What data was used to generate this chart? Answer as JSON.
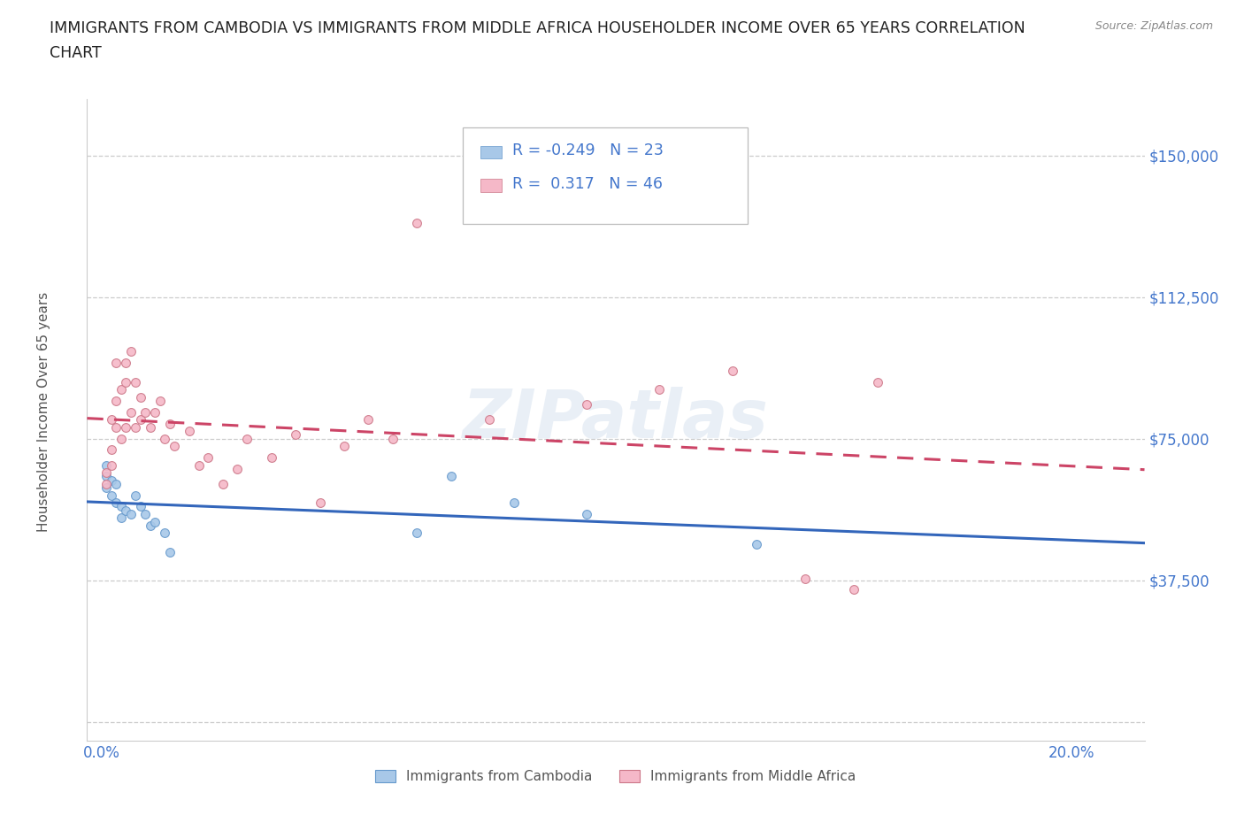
{
  "title_line1": "IMMIGRANTS FROM CAMBODIA VS IMMIGRANTS FROM MIDDLE AFRICA HOUSEHOLDER INCOME OVER 65 YEARS CORRELATION",
  "title_line2": "CHART",
  "source_text": "Source: ZipAtlas.com",
  "ylabel": "Householder Income Over 65 years",
  "xlim": [
    -0.003,
    0.215
  ],
  "ylim": [
    -5000,
    165000
  ],
  "yticks": [
    0,
    37500,
    75000,
    112500,
    150000
  ],
  "ytick_labels": [
    "",
    "$37,500",
    "$75,000",
    "$112,500",
    "$150,000"
  ],
  "xtick_positions": [
    0.0,
    0.05,
    0.1,
    0.15,
    0.2
  ],
  "xtick_labels": [
    "0.0%",
    "",
    "",
    "",
    "20.0%"
  ],
  "watermark": "ZIPatlas",
  "cambodia_color": "#a8c8e8",
  "cambodia_edge": "#6699cc",
  "middle_africa_color": "#f5b8c8",
  "middle_africa_edge": "#cc7788",
  "trend_cambodia_color": "#3366bb",
  "trend_middle_africa_color": "#cc4466",
  "legend_label_cambodia": "Immigrants from Cambodia",
  "legend_label_middle_africa": "Immigrants from Middle Africa",
  "title_color": "#222222",
  "title_fontsize": 12.5,
  "source_fontsize": 9,
  "axis_label_color": "#555555",
  "tick_color": "#4477cc",
  "grid_color": "#cccccc",
  "scatter_size": 50,
  "cambodia_x": [
    0.001,
    0.001,
    0.001,
    0.002,
    0.002,
    0.003,
    0.003,
    0.004,
    0.004,
    0.005,
    0.006,
    0.007,
    0.008,
    0.009,
    0.01,
    0.011,
    0.013,
    0.014,
    0.065,
    0.072,
    0.085,
    0.1,
    0.135
  ],
  "cambodia_y": [
    68000,
    65000,
    62000,
    64000,
    60000,
    63000,
    58000,
    57000,
    54000,
    56000,
    55000,
    60000,
    57000,
    55000,
    52000,
    53000,
    50000,
    45000,
    50000,
    65000,
    58000,
    55000,
    47000
  ],
  "middle_africa_x": [
    0.001,
    0.001,
    0.002,
    0.002,
    0.002,
    0.003,
    0.003,
    0.003,
    0.004,
    0.004,
    0.005,
    0.005,
    0.005,
    0.006,
    0.006,
    0.007,
    0.007,
    0.008,
    0.008,
    0.009,
    0.01,
    0.011,
    0.012,
    0.013,
    0.014,
    0.015,
    0.018,
    0.02,
    0.022,
    0.025,
    0.028,
    0.03,
    0.035,
    0.04,
    0.045,
    0.05,
    0.055,
    0.06,
    0.065,
    0.08,
    0.1,
    0.115,
    0.13,
    0.145,
    0.155,
    0.16
  ],
  "middle_africa_y": [
    66000,
    63000,
    72000,
    80000,
    68000,
    95000,
    85000,
    78000,
    88000,
    75000,
    95000,
    90000,
    78000,
    98000,
    82000,
    90000,
    78000,
    86000,
    80000,
    82000,
    78000,
    82000,
    85000,
    75000,
    79000,
    73000,
    77000,
    68000,
    70000,
    63000,
    67000,
    75000,
    70000,
    76000,
    58000,
    73000,
    80000,
    75000,
    132000,
    80000,
    84000,
    88000,
    93000,
    38000,
    35000,
    90000
  ]
}
